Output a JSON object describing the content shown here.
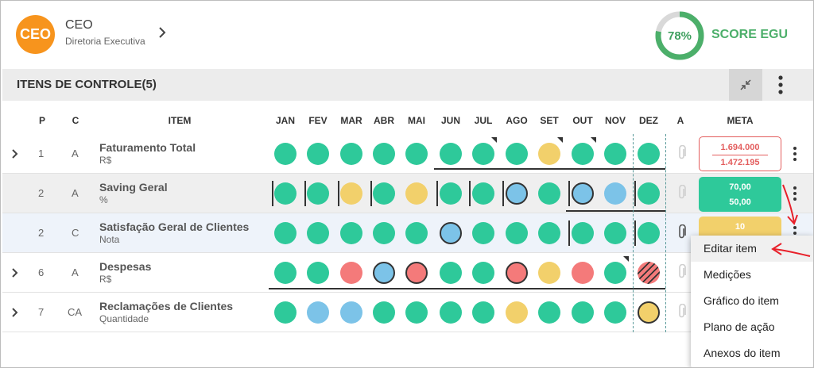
{
  "header": {
    "avatar_text": "CEO",
    "name": "CEO",
    "subtitle": "Diretoria Executiva",
    "score_percent": "78%",
    "score_value": 0.78,
    "score_label": "SCORE EGU"
  },
  "section": {
    "title": "ITENS DE CONTROLE(5)"
  },
  "columns": {
    "p": "P",
    "c": "C",
    "item": "ITEM",
    "months": [
      "JAN",
      "FEV",
      "MAR",
      "ABR",
      "MAI",
      "JUN",
      "JUL",
      "AGO",
      "SET",
      "OUT",
      "NOV",
      "DEZ"
    ],
    "a": "A",
    "meta": "META"
  },
  "colors": {
    "green": "#2ec99a",
    "yellow": "#f2d06b",
    "blue": "#7cc3e8",
    "red": "#f47a7a",
    "meta_red_border": "#e35d5d",
    "meta_green": "#2ec99a",
    "meta_yellow": "#f2d06b",
    "arrow_red": "#e8202a"
  },
  "rows": [
    {
      "p": "1",
      "c": "A",
      "name": "Faturamento Total",
      "unit": "R$",
      "expandable": true,
      "statuses": [
        "green",
        "green",
        "green",
        "green",
        "green",
        "green",
        "green",
        "green",
        "yellow",
        "green",
        "green",
        "green"
      ],
      "meta": [
        "1.694.000",
        "1.472.195"
      ],
      "meta_style": "outline-red"
    },
    {
      "p": "2",
      "c": "A",
      "name": "Saving Geral",
      "unit": "%",
      "expandable": false,
      "statuses": [
        "green",
        "green",
        "yellow",
        "green",
        "yellow",
        "green",
        "green",
        "blue",
        "green",
        "blue",
        "blue",
        "green"
      ],
      "meta": [
        "70,00",
        "50,00"
      ],
      "meta_style": "green"
    },
    {
      "p": "2",
      "c": "C",
      "name": "Satisfação Geral de Clientes",
      "unit": "Nota",
      "expandable": false,
      "statuses": [
        "green",
        "green",
        "green",
        "green",
        "green",
        "blue",
        "green",
        "green",
        "green",
        "green",
        "green",
        "green"
      ],
      "meta": [
        "10",
        ""
      ],
      "meta_style": "yellow"
    },
    {
      "p": "6",
      "c": "A",
      "name": "Despesas",
      "unit": "R$",
      "expandable": true,
      "statuses": [
        "green",
        "green",
        "red",
        "blue",
        "red",
        "green",
        "green",
        "red",
        "yellow",
        "red",
        "green",
        "red-hatched"
      ],
      "meta": [
        "",
        ""
      ],
      "meta_style": "none"
    },
    {
      "p": "7",
      "c": "CA",
      "name": "Reclamações de Clientes",
      "unit": "Quantidade",
      "expandable": true,
      "statuses": [
        "green",
        "blue",
        "blue",
        "green",
        "green",
        "green",
        "green",
        "yellow",
        "green",
        "green",
        "green",
        "yellow"
      ],
      "meta": [
        "",
        ""
      ],
      "meta_style": "none"
    }
  ],
  "context_menu": {
    "items": [
      "Editar item",
      "Medições",
      "Gráfico do item",
      "Plano de ação",
      "Anexos do item"
    ]
  }
}
